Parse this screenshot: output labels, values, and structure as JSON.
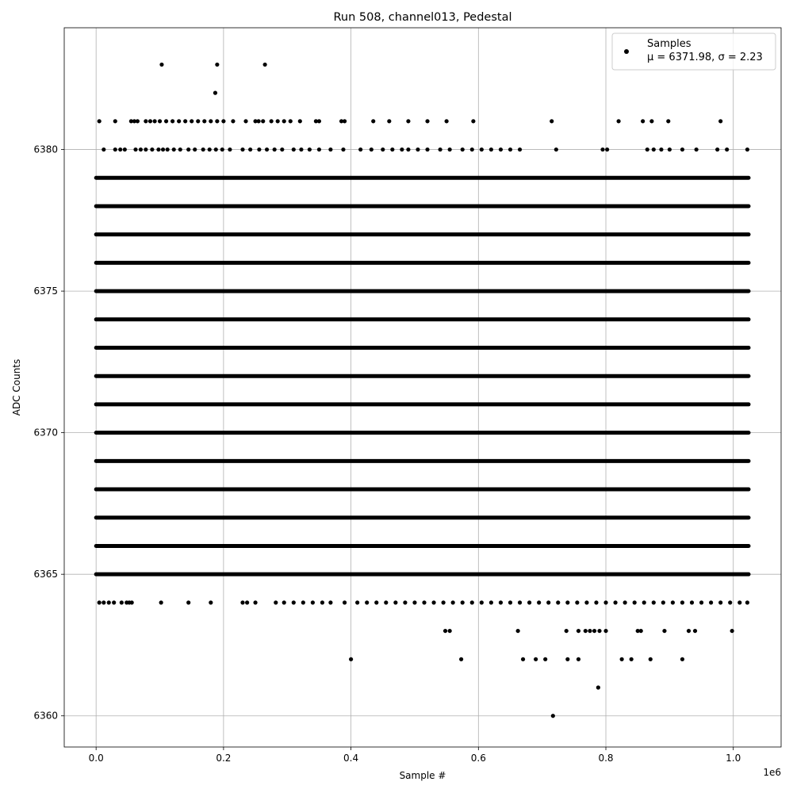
{
  "chart_data": {
    "type": "scatter",
    "title": "Run 508, channel013, Pedestal",
    "xlabel": "Sample #",
    "ylabel": "ADC Counts",
    "x_offset_label": "1e6",
    "xlim": [
      -50000,
      1075000
    ],
    "ylim": [
      6358.9,
      6384.3
    ],
    "x_ticks": [
      0,
      200000,
      400000,
      600000,
      800000,
      1000000
    ],
    "x_tick_labels": [
      "0.0",
      "0.2",
      "0.4",
      "0.6",
      "0.8",
      "1.0"
    ],
    "y_ticks": [
      6360,
      6365,
      6370,
      6375,
      6380
    ],
    "y_tick_labels": [
      "6360",
      "6365",
      "6370",
      "6375",
      "6380"
    ],
    "grid": true,
    "marker_color": "#000000",
    "legend": {
      "placement": "top-right",
      "series_label": "Samples",
      "stats_label": "μ = 6371.98, σ = 2.23"
    },
    "series": [
      {
        "name": "Samples",
        "x_range": [
          0,
          1024000
        ],
        "dense_levels": [
          6365,
          6366,
          6367,
          6368,
          6369,
          6370,
          6371,
          6372,
          6373,
          6374,
          6375,
          6376,
          6377,
          6378,
          6379
        ],
        "sparse_points": [
          {
            "y": 6383,
            "x": [
              103000,
              190000,
              265000
            ]
          },
          {
            "y": 6382,
            "x": [
              187000
            ]
          },
          {
            "y": 6381,
            "x": [
              5000,
              30000,
              55000,
              60000,
              65000,
              78000,
              85000,
              92000,
              100000,
              110000,
              120000,
              130000,
              140000,
              150000,
              160000,
              170000,
              180000,
              190000,
              200000,
              215000,
              235000,
              250000,
              255000,
              262000,
              275000,
              285000,
              295000,
              305000,
              320000,
              345000,
              350000,
              385000,
              390000,
              435000,
              460000,
              490000,
              520000,
              550000,
              592000,
              715000,
              820000,
              858000,
              872000,
              898000,
              980000
            ]
          },
          {
            "y": 6380,
            "x": [
              12000,
              30000,
              38000,
              45000,
              62000,
              70000,
              78000,
              88000,
              98000,
              105000,
              112000,
              122000,
              132000,
              145000,
              155000,
              168000,
              178000,
              188000,
              198000,
              210000,
              230000,
              242000,
              256000,
              268000,
              280000,
              292000,
              310000,
              322000,
              335000,
              350000,
              368000,
              388000,
              415000,
              432000,
              450000,
              465000,
              480000,
              490000,
              505000,
              520000,
              540000,
              555000,
              575000,
              590000,
              605000,
              620000,
              635000,
              650000,
              665000,
              722000,
              795000,
              802000,
              865000,
              875000,
              887000,
              900000,
              920000,
              942000,
              975000,
              990000,
              1022000
            ]
          },
          {
            "y": 6364,
            "x": [
              5000,
              12000,
              20000,
              28000,
              40000,
              48000,
              52000,
              56000,
              102000,
              145000,
              180000,
              230000,
              237000,
              250000,
              282000,
              295000,
              310000,
              325000,
              340000,
              355000,
              368000,
              390000,
              410000,
              425000,
              440000,
              455000,
              470000,
              485000,
              500000,
              515000,
              530000,
              545000,
              560000,
              575000,
              590000,
              605000,
              620000,
              635000,
              650000,
              665000,
              680000,
              695000,
              710000,
              725000,
              740000,
              755000,
              770000,
              785000,
              800000,
              815000,
              830000,
              845000,
              860000,
              875000,
              890000,
              905000,
              920000,
              935000,
              950000,
              965000,
              980000,
              995000,
              1010000,
              1022000
            ]
          },
          {
            "y": 6363,
            "x": [
              548000,
              555000,
              662000,
              738000,
              757000,
              768000,
              775000,
              782000,
              790000,
              800000,
              850000,
              855000,
              892000,
              930000,
              940000,
              998000
            ]
          },
          {
            "y": 6362,
            "x": [
              400000,
              573000,
              670000,
              690000,
              705000,
              740000,
              757000,
              825000,
              840000,
              870000,
              920000
            ]
          },
          {
            "y": 6361,
            "x": [
              788000
            ]
          },
          {
            "y": 6360,
            "x": [
              717000
            ]
          }
        ]
      }
    ]
  }
}
